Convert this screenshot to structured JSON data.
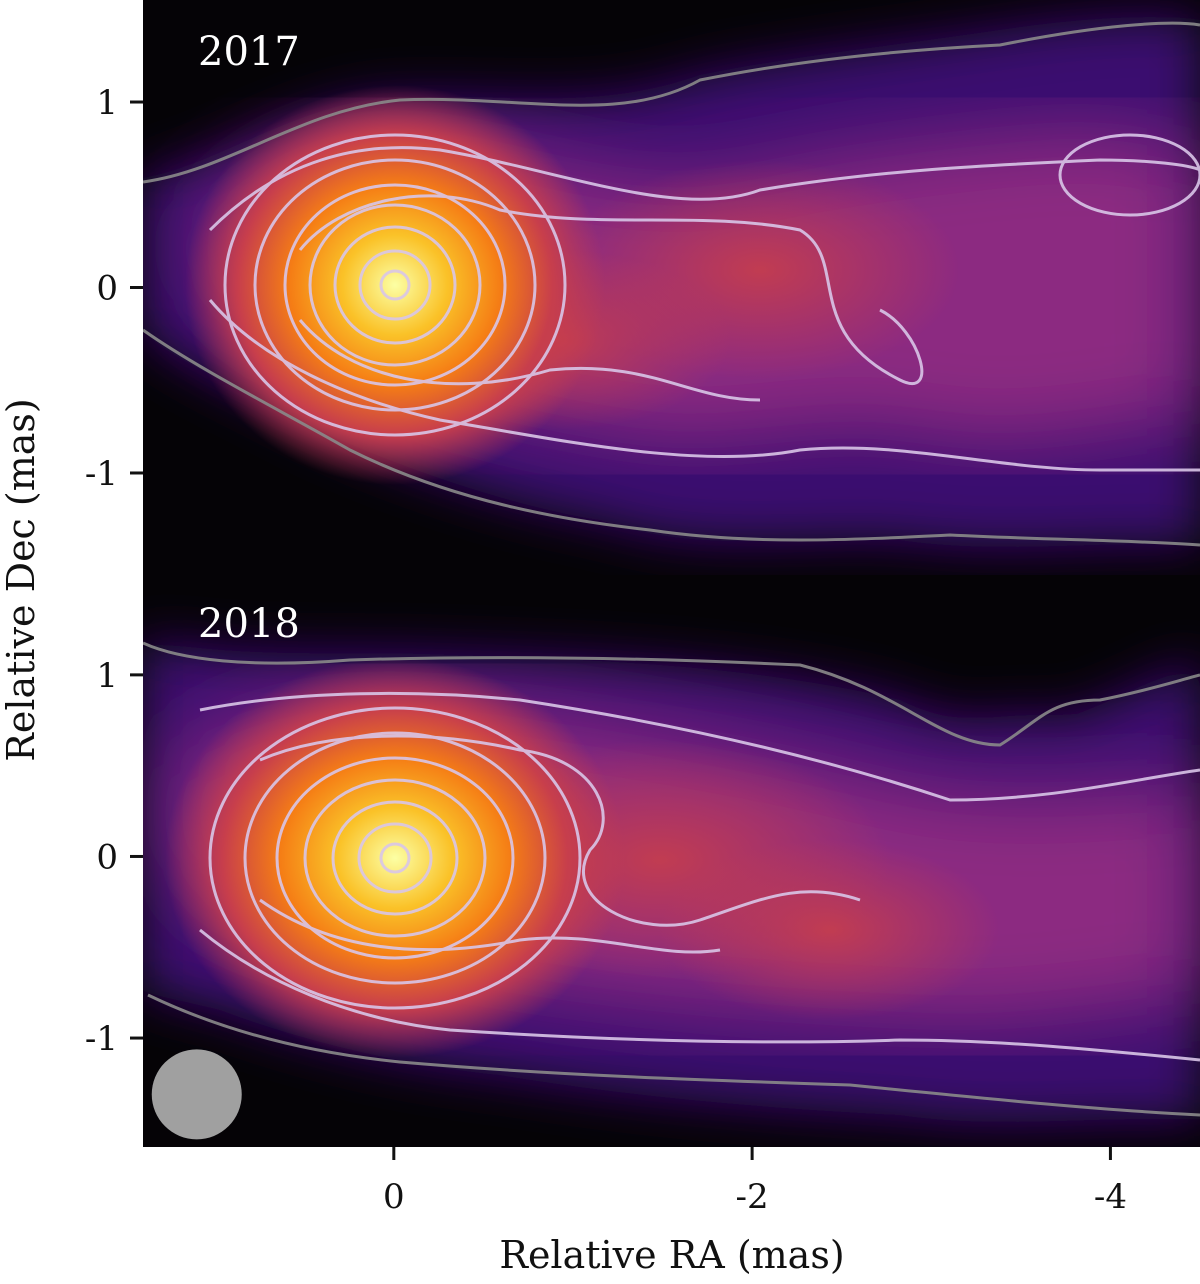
{
  "chart_data": {
    "type": "heatmap",
    "xlabel": "Relative RA (mas)",
    "ylabel": "Relative Dec (mas)",
    "xlim": [
      1.4,
      -4.5
    ],
    "x_ticks": [
      0,
      -2,
      -4
    ],
    "x_tick_labels": [
      "0",
      "-2",
      "-4"
    ],
    "y_ticks": [
      1,
      0,
      -1
    ],
    "y_tick_labels": [
      "1",
      "0",
      "-1"
    ],
    "colormap": "inferno-like",
    "contour_color": "#d9c6e8",
    "background_color": "#050306",
    "beam": {
      "ra": 1.1,
      "dec": -1.2,
      "radius_mas": 0.25,
      "color": "#a0a0a0"
    },
    "panels": [
      {
        "epoch_label": "2017",
        "ylim": [
          -1.55,
          1.55
        ],
        "core": {
          "ra": 0.0,
          "dec": 0.0
        },
        "jet_components": [
          {
            "ra": -2.0,
            "dec": 0.15
          },
          {
            "ra": -1.6,
            "dec": -0.5
          },
          {
            "ra": -4.2,
            "dec": 0.65
          }
        ]
      },
      {
        "epoch_label": "2018",
        "ylim": [
          -1.6,
          1.55
        ],
        "core": {
          "ra": 0.0,
          "dec": 0.0
        },
        "jet_components": [
          {
            "ra": -1.2,
            "dec": 0.1
          },
          {
            "ra": -2.3,
            "dec": -0.35
          },
          {
            "ra": -3.0,
            "dec": -0.7
          }
        ]
      }
    ]
  }
}
